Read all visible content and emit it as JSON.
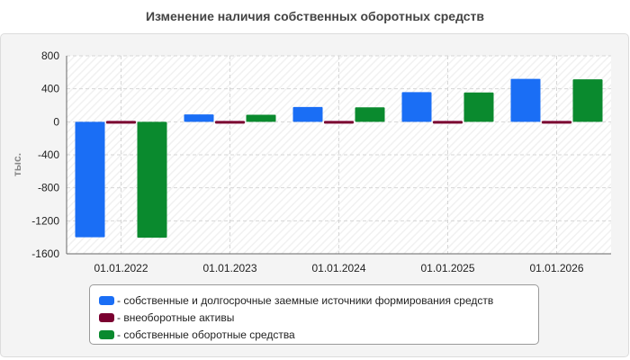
{
  "page": {
    "title": "Изменение наличия собственных оборотных средств"
  },
  "chart_data": {
    "type": "bar",
    "title": "Изменение наличия собственных оборотных средств",
    "ylabel": "тыс.",
    "xlabel": "",
    "ylim": [
      -1600,
      800
    ],
    "yticks": [
      800,
      400,
      0,
      -400,
      -800,
      -1200,
      -1600
    ],
    "categories": [
      "01.01.2022",
      "01.01.2023",
      "01.01.2024",
      "01.01.2025",
      "01.01.2026"
    ],
    "grid": true,
    "legend_position": "bottom",
    "series": [
      {
        "name": "- собственные и долгосрочные заемные источники формирования средств",
        "color": "#1a6ef5",
        "values": [
          -1400,
          90,
          180,
          360,
          520
        ]
      },
      {
        "name": "- внеоборотные активы",
        "color": "#7a0030",
        "values": [
          12,
          8,
          8,
          8,
          8
        ]
      },
      {
        "name": "- собственные оборотные средства",
        "color": "#0a8a2e",
        "values": [
          -1405,
          85,
          175,
          355,
          515
        ]
      }
    ]
  }
}
